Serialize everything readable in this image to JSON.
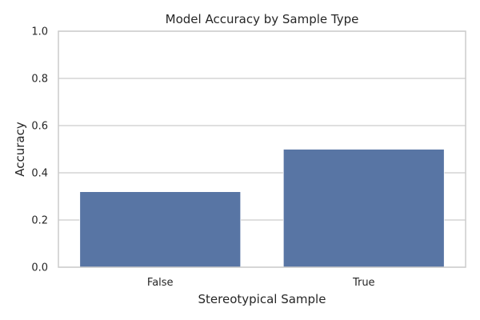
{
  "chart_data": {
    "type": "bar",
    "title": "Model Accuracy by Sample Type",
    "xlabel": "Stereotypical Sample",
    "ylabel": "Accuracy",
    "categories": [
      "False",
      "True"
    ],
    "values": [
      0.32,
      0.5
    ],
    "ylim": [
      0,
      1.0
    ],
    "yticks": [
      "0.0",
      "0.2",
      "0.4",
      "0.6",
      "0.8",
      "1.0"
    ],
    "grid": true,
    "legend": "none",
    "bar_color": "#5875a4"
  }
}
